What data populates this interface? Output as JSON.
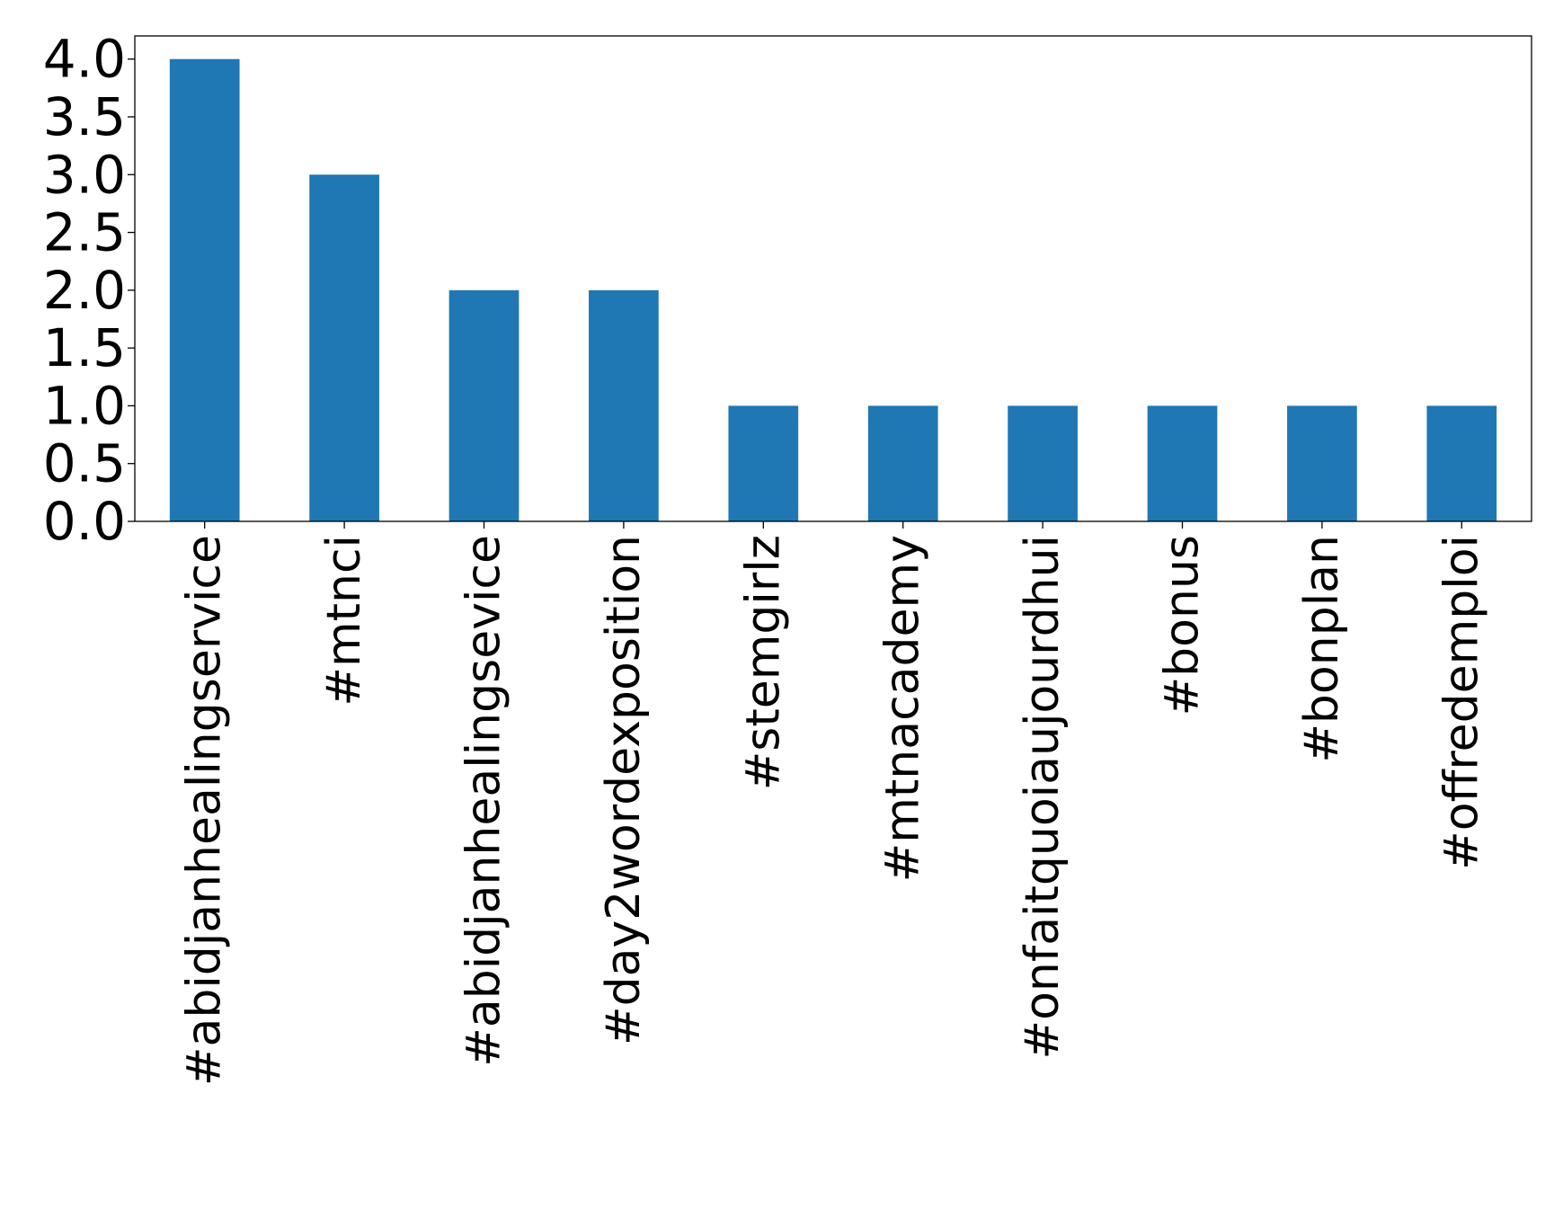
{
  "chart_data": {
    "type": "bar",
    "categories": [
      "#abidjanhealingservice",
      "#mtnci",
      "#abidjanhealingsevice",
      "#day2wordexposition",
      "#stemgirlz",
      "#mtnacademy",
      "#onfaitquoiaujourdhui",
      "#bonus",
      "#bonplan",
      "#offredemploi"
    ],
    "values": [
      4,
      3,
      2,
      2,
      1,
      1,
      1,
      1,
      1,
      1
    ],
    "title": "",
    "xlabel": "",
    "ylabel": "",
    "ylim": [
      0,
      4.2
    ],
    "yticks": [
      "0.0",
      "0.5",
      "1.0",
      "1.5",
      "2.0",
      "2.5",
      "3.0",
      "3.5",
      "4.0"
    ],
    "grid": false,
    "bar_color": "#1f77b4",
    "axis_color": "#000000"
  }
}
